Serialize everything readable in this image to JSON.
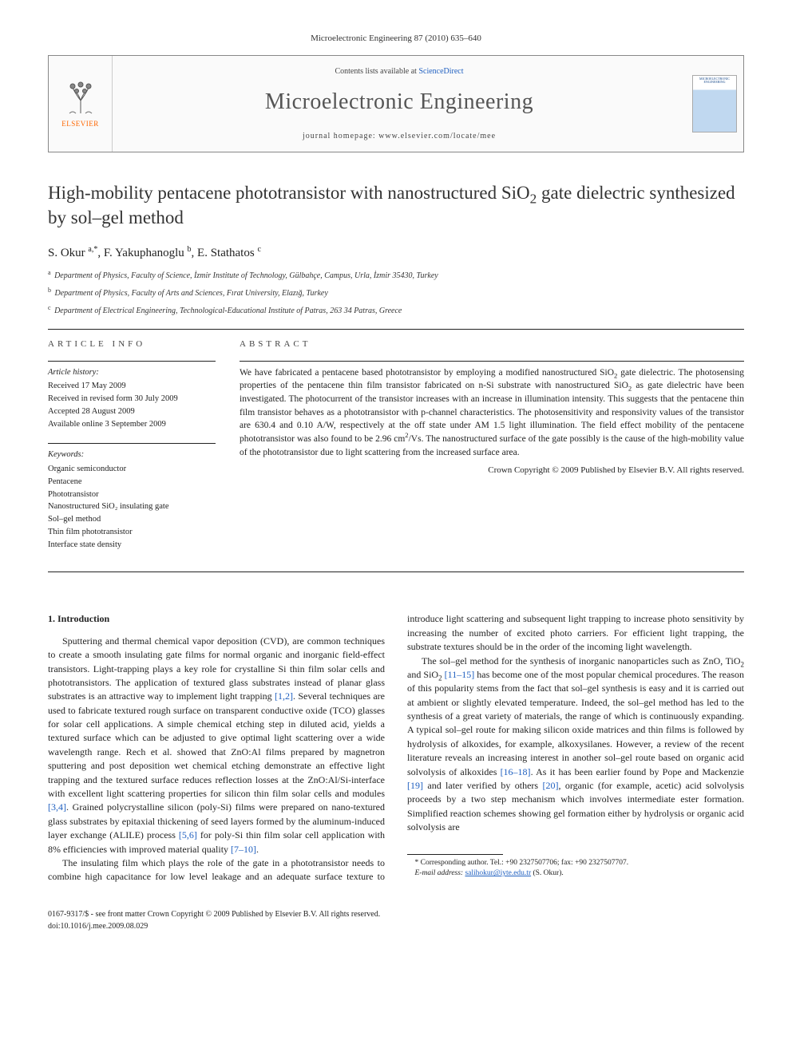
{
  "header": {
    "citation": "Microelectronic Engineering 87 (2010) 635–640",
    "contents_prefix": "Contents lists available at ",
    "contents_link": "ScienceDirect",
    "journal_name": "Microelectronic Engineering",
    "homepage_label": "journal homepage: ",
    "homepage_url": "www.elsevier.com/locate/mee",
    "publisher": "ELSEVIER",
    "cover_label": "MICROELECTRONIC ENGINEERING"
  },
  "title_html": "High-mobility pentacene phototransistor with nanostructured SiO<sub>2</sub> gate dielectric synthesized by sol–gel method",
  "authors_html": "S. Okur <sup>a,*</sup>, F. Yakuphanoglu <sup>b</sup>, E. Stathatos <sup>c</sup>",
  "affiliations": [
    {
      "sup": "a",
      "text": "Department of Physics, Faculty of Science, İzmir Institute of Technology, Gülbahçe, Campus, Urla, İzmir 35430, Turkey"
    },
    {
      "sup": "b",
      "text": "Department of Physics, Faculty of Arts and Sciences, Fırat University, Elazığ, Turkey"
    },
    {
      "sup": "c",
      "text": "Department of Electrical Engineering, Technological-Educational Institute of Patras, 263 34 Patras, Greece"
    }
  ],
  "article_info": {
    "heading": "ARTICLE INFO",
    "history_label": "Article history:",
    "history": [
      "Received 17 May 2009",
      "Received in revised form 30 July 2009",
      "Accepted 28 August 2009",
      "Available online 3 September 2009"
    ],
    "keywords_label": "Keywords:",
    "keywords": [
      "Organic semiconductor",
      "Pentacene",
      "Phototransistor",
      "Nanostructured SiO₂ insulating gate",
      "Sol–gel method",
      "Thin film phototransistor",
      "Interface state density"
    ]
  },
  "abstract": {
    "heading": "ABSTRACT",
    "text_html": "We have fabricated a pentacene based phototransistor by employing a modified nanostructured SiO<sub>2</sub> gate dielectric. The photosensing properties of the pentacene thin film transistor fabricated on n-Si substrate with nanostructured SiO<sub>2</sub> as gate dielectric have been investigated. The photocurrent of the transistor increases with an increase in illumination intensity. This suggests that the pentacene thin film transistor behaves as a phototransistor with p-channel characteristics. The photosensitivity and responsivity values of the transistor are 630.4 and 0.10 A/W, respectively at the off state under AM 1.5 light illumination. The field effect mobility of the pentacene phototransistor was also found to be 2.96 cm<sup>2</sup>/Vs. The nanostructured surface of the gate possibly is the cause of the high-mobility value of the phototransistor due to light scattering from the increased surface area.",
    "copyright": "Crown Copyright © 2009 Published by Elsevier B.V. All rights reserved."
  },
  "body": {
    "section1_heading": "1. Introduction",
    "paragraphs_html": [
      "Sputtering and thermal chemical vapor deposition (CVD), are common techniques to create a smooth insulating gate films for normal organic and inorganic field-effect transistors. Light-trapping plays a key role for crystalline Si thin film solar cells and phototransistors. The application of textured glass substrates instead of planar glass substrates is an attractive way to implement light trapping <span class=\"ref\">[1,2]</span>. Several techniques are used to fabricate textured rough surface on transparent conductive oxide (TCO) glasses for solar cell applications. A simple chemical etching step in diluted acid, yields a textured surface which can be adjusted to give optimal light scattering over a wide wavelength range. Rech et al. showed that ZnO:Al films prepared by magnetron sputtering and post deposition wet chemical etching demonstrate an effective light trapping and the textured surface reduces reflection losses at the ZnO:Al/Si-interface with excellent light scattering properties for silicon thin film solar cells and modules <span class=\"ref\">[3,4]</span>. Grained polycrystalline silicon (poly-Si) films were prepared on nano-textured glass substrates by epitaxial thickening of seed layers formed by the aluminum-induced layer exchange (ALILE) process <span class=\"ref\">[5,6]</span> for poly-Si thin film solar cell application with 8% efficiencies with improved material quality <span class=\"ref\">[7–10]</span>.",
      "The insulating film which plays the role of the gate in a phototransistor needs to combine high capacitance for low level leakage and an adequate surface texture to introduce light scattering and subsequent light trapping to increase photo sensitivity by increasing the number of excited photo carriers. For efficient light trapping, the substrate textures should be in the order of the incoming light wavelength.",
      "The sol–gel method for the synthesis of inorganic nanoparticles such as ZnO, TiO<sub>2</sub> and SiO<sub>2</sub> <span class=\"ref\">[11–15]</span> has become one of the most popular chemical procedures. The reason of this popularity stems from the fact that sol–gel synthesis is easy and it is carried out at ambient or slightly elevated temperature. Indeed, the sol–gel method has led to the synthesis of a great variety of materials, the range of which is continuously expanding. A typical sol–gel route for making silicon oxide matrices and thin films is followed by hydrolysis of alkoxides, for example, alkoxysilanes. However, a review of the recent literature reveals an increasing interest in another sol–gel route based on organic acid solvolysis of alkoxides <span class=\"ref\">[16–18]</span>. As it has been earlier found by Pope and Mackenzie <span class=\"ref\">[19]</span> and later verified by others <span class=\"ref\">[20]</span>, organic (for example, acetic) acid solvolysis proceeds by a two step mechanism which involves intermediate ester formation. Simplified reaction schemes showing gel formation either by hydrolysis or organic acid solvolysis are"
    ]
  },
  "footnote": {
    "corresponding": "* Corresponding author. Tel.: +90 2327507706; fax: +90 2327507707.",
    "email_label": "E-mail address:",
    "email": "salihokur@iyte.edu.tr",
    "email_name": "(S. Okur)."
  },
  "bottom": {
    "line1": "0167-9317/$ - see front matter Crown Copyright © 2009 Published by Elsevier B.V. All rights reserved.",
    "line2": "doi:10.1016/j.mee.2009.08.029"
  },
  "colors": {
    "link": "#2060c0",
    "elsevier_orange": "#ff6600",
    "text": "#222222",
    "border": "#888888"
  }
}
